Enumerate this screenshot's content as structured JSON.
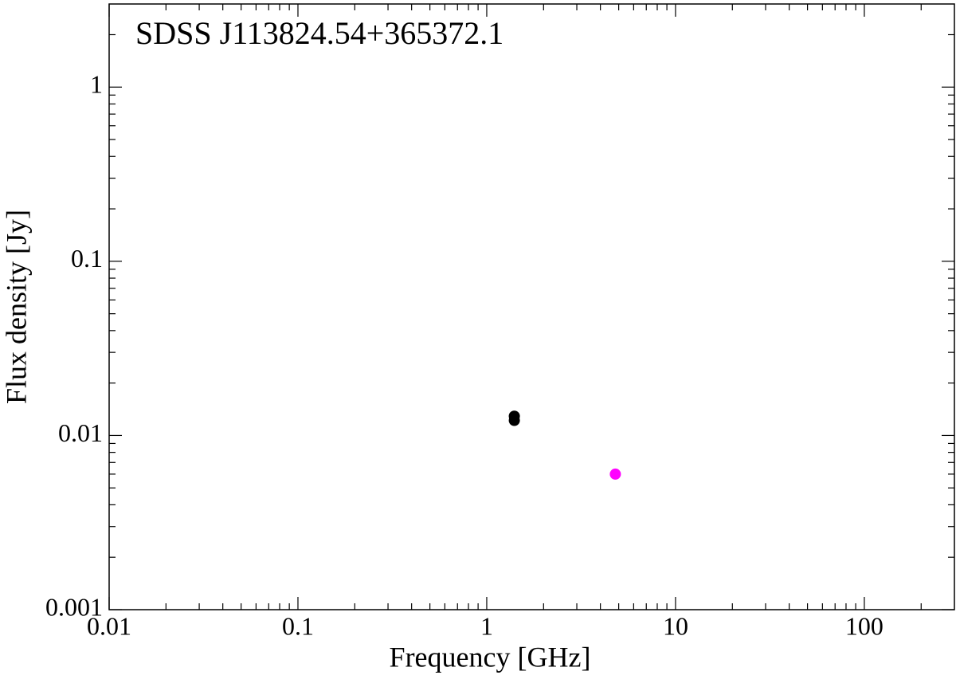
{
  "chart_data": {
    "type": "scatter",
    "title": "SDSS J113824.54+365372.1",
    "x_label": "Frequency [GHz]",
    "y_label": "Flux density [Jy]",
    "xscale": "log",
    "yscale": "log",
    "minor_ticks": true,
    "xlim": [
      0.01,
      300
    ],
    "ylim": [
      0.001,
      3
    ],
    "xticks": [
      0.01,
      0.1,
      1,
      10,
      100
    ],
    "yticks": [
      0.001,
      0.01,
      0.1,
      1
    ],
    "series": [
      {
        "color": "#000000",
        "x": [
          1.4,
          1.4
        ],
        "values": [
          0.0122,
          0.0129
        ]
      },
      {
        "color": "#ff00ff",
        "x": [
          4.8
        ],
        "values": [
          0.006
        ]
      }
    ]
  }
}
